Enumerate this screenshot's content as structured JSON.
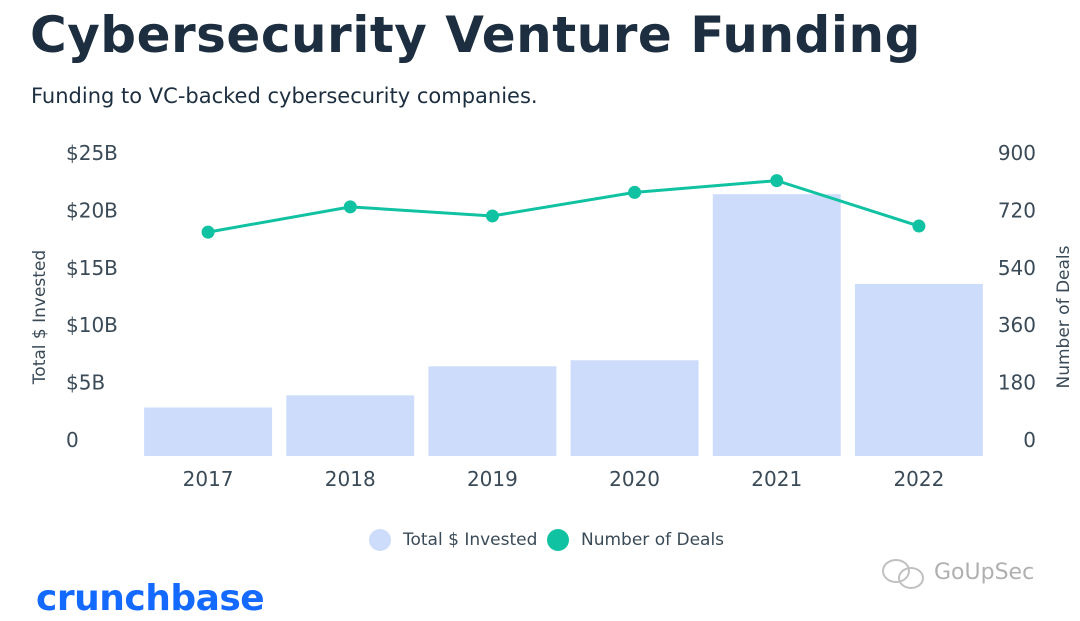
{
  "header": {
    "title": "Cybersecurity Venture Funding",
    "subtitle": "Funding to VC-backed cybersecurity companies."
  },
  "chart_data": {
    "type": "bar",
    "categories": [
      "2017",
      "2018",
      "2019",
      "2020",
      "2021",
      "2022"
    ],
    "series": [
      {
        "name": "Total $ Invested",
        "type": "bar",
        "axis": "left",
        "values": [
          4.0,
          5.0,
          7.4,
          7.9,
          21.6,
          14.2
        ],
        "color": "#cddcfb"
      },
      {
        "name": "Number of Deals",
        "type": "line",
        "axis": "right",
        "values": [
          665,
          740,
          713,
          783,
          818,
          683
        ],
        "color": "#11c2a2"
      }
    ],
    "left_axis": {
      "label": "Total $ Invested",
      "ticks": [
        "0",
        "$5B",
        "$10B",
        "$15B",
        "$20B",
        "$25B"
      ],
      "ylim": [
        0,
        25
      ]
    },
    "right_axis": {
      "label": "Number of Deals",
      "ticks": [
        "0",
        "180",
        "360",
        "540",
        "720",
        "900"
      ],
      "ylim": [
        0,
        900
      ]
    },
    "grid": false,
    "legend_position": "bottom-center"
  },
  "legend": {
    "items": [
      {
        "label": "Total $ Invested",
        "color": "#cddcfb"
      },
      {
        "label": "Number of Deals",
        "color": "#11c2a2"
      }
    ]
  },
  "branding": {
    "logo_text": "crunchbase",
    "watermark_text": "GoUpSec"
  }
}
